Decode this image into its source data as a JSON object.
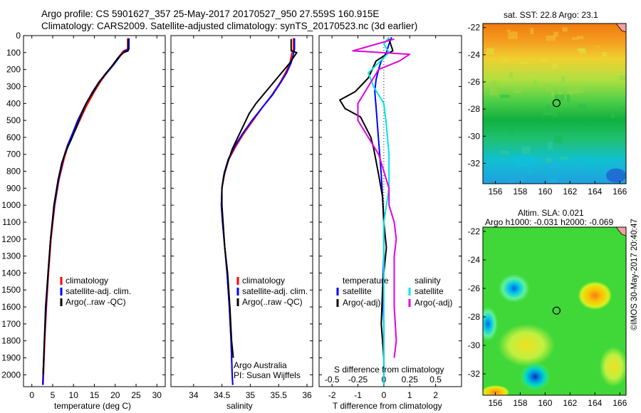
{
  "header": {
    "line1": "Argo profile: CS 5901627_357 25-May-2017 20170527_950 27.559S 160.915E",
    "line2": "Climatology: CARS2009. Satellite-adjusted climatology: synTS_20170523.nc (3d earlier)"
  },
  "credit": "©IMOS 30-May-2017 20:40:47",
  "colors": {
    "climatology": "#ff0000",
    "satellite": "#0000ff",
    "argo": "#000000",
    "satellite_s": "#00e5e5",
    "argo_adj_s": "#e000e0"
  },
  "chart_data": [
    {
      "id": "temperature",
      "type": "line",
      "xlabel": "temperature (deg C)",
      "ylabel": "",
      "xlim": [
        -2,
        32
      ],
      "ylim": [
        2070,
        0
      ],
      "xticks": [
        0,
        5,
        10,
        15,
        20,
        25,
        30
      ],
      "yticks": [
        0,
        100,
        200,
        300,
        400,
        500,
        600,
        700,
        800,
        900,
        1000,
        1100,
        1200,
        1300,
        1400,
        1500,
        1600,
        1700,
        1800,
        1900,
        2000
      ],
      "legend": [
        "climatology",
        "satellite-adj. clim.",
        "Argo(..raw -QC)"
      ],
      "series": [
        {
          "name": "climatology",
          "color": "#ff0000",
          "points": [
            [
              23.0,
              15
            ],
            [
              23.0,
              80
            ],
            [
              22.0,
              90
            ],
            [
              21.0,
              120
            ],
            [
              19.5,
              170
            ],
            [
              18.0,
              220
            ],
            [
              16.5,
              270
            ],
            [
              15.0,
              330
            ],
            [
              13.0,
              420
            ],
            [
              11.5,
              500
            ],
            [
              10.0,
              580
            ],
            [
              8.7,
              650
            ],
            [
              7.8,
              720
            ],
            [
              6.5,
              850
            ],
            [
              5.5,
              1000
            ],
            [
              4.6,
              1200
            ],
            [
              4.0,
              1400
            ],
            [
              3.5,
              1600
            ],
            [
              3.1,
              1800
            ],
            [
              2.8,
              2000
            ],
            [
              2.7,
              2060
            ]
          ]
        },
        {
          "name": "satellite-adj. clim.",
          "color": "#0000ff",
          "points": [
            [
              23.3,
              15
            ],
            [
              23.3,
              80
            ],
            [
              22.3,
              90
            ],
            [
              21.2,
              120
            ],
            [
              19.7,
              170
            ],
            [
              18.0,
              220
            ],
            [
              16.2,
              270
            ],
            [
              14.6,
              330
            ],
            [
              12.6,
              420
            ],
            [
              11.0,
              500
            ],
            [
              9.7,
              580
            ],
            [
              8.5,
              650
            ],
            [
              7.6,
              720
            ],
            [
              6.4,
              850
            ],
            [
              5.4,
              1000
            ],
            [
              4.5,
              1200
            ],
            [
              3.9,
              1400
            ],
            [
              3.4,
              1600
            ],
            [
              3.0,
              1800
            ],
            [
              2.7,
              2000
            ],
            [
              2.6,
              2060
            ]
          ]
        },
        {
          "name": "Argo(..raw -QC)",
          "color": "#000000",
          "points": [
            [
              23.1,
              20
            ],
            [
              23.1,
              90
            ],
            [
              22.0,
              100
            ],
            [
              20.7,
              130
            ],
            [
              19.2,
              180
            ],
            [
              17.5,
              230
            ],
            [
              16.0,
              280
            ],
            [
              14.5,
              340
            ],
            [
              13.0,
              400
            ],
            [
              11.8,
              470
            ],
            [
              10.7,
              540
            ],
            [
              9.5,
              610
            ],
            [
              8.2,
              680
            ],
            [
              7.2,
              750
            ],
            [
              6.3,
              850
            ],
            [
              5.3,
              1000
            ],
            [
              4.5,
              1200
            ],
            [
              3.9,
              1400
            ],
            [
              3.3,
              1600
            ],
            [
              3.0,
              1800
            ],
            [
              2.7,
              2000
            ]
          ]
        }
      ]
    },
    {
      "id": "salinity",
      "type": "line",
      "xlabel": "salinity",
      "ylabel": "",
      "xlim": [
        33.6,
        36.1
      ],
      "ylim": [
        2070,
        0
      ],
      "xticks": [
        34,
        34.5,
        35,
        35.5,
        36
      ],
      "xtick_labels": [
        "34",
        "34.5",
        "35",
        "35.5",
        "36"
      ],
      "legend": [
        "climatology",
        "satellite-adj. clim.",
        "Argo(..raw -QC)"
      ],
      "annotation": [
        "Argo Australia",
        "PI: Susan Wijffels"
      ],
      "series": [
        {
          "name": "climatology",
          "color": "#ff0000",
          "points": [
            [
              35.76,
              15
            ],
            [
              35.76,
              80
            ],
            [
              35.73,
              110
            ],
            [
              35.7,
              160
            ],
            [
              35.62,
              220
            ],
            [
              35.52,
              280
            ],
            [
              35.38,
              350
            ],
            [
              35.22,
              420
            ],
            [
              35.05,
              500
            ],
            [
              34.88,
              580
            ],
            [
              34.75,
              650
            ],
            [
              34.62,
              730
            ],
            [
              34.55,
              810
            ],
            [
              34.5,
              900
            ],
            [
              34.49,
              1000
            ],
            [
              34.51,
              1100
            ],
            [
              34.55,
              1250
            ],
            [
              34.59,
              1400
            ],
            [
              34.63,
              1600
            ],
            [
              34.66,
              1800
            ],
            [
              34.68,
              2000
            ],
            [
              34.69,
              2060
            ]
          ]
        },
        {
          "name": "satellite-adj. clim.",
          "color": "#0000ff",
          "points": [
            [
              35.78,
              15
            ],
            [
              35.78,
              80
            ],
            [
              35.76,
              110
            ],
            [
              35.72,
              160
            ],
            [
              35.64,
              220
            ],
            [
              35.53,
              280
            ],
            [
              35.39,
              350
            ],
            [
              35.22,
              420
            ],
            [
              35.03,
              500
            ],
            [
              34.86,
              580
            ],
            [
              34.73,
              650
            ],
            [
              34.61,
              730
            ],
            [
              34.54,
              810
            ],
            [
              34.5,
              900
            ],
            [
              34.49,
              1000
            ],
            [
              34.51,
              1100
            ],
            [
              34.55,
              1250
            ],
            [
              34.59,
              1400
            ],
            [
              34.63,
              1600
            ],
            [
              34.66,
              1800
            ],
            [
              34.68,
              2000
            ],
            [
              34.69,
              2060
            ]
          ]
        },
        {
          "name": "Argo(..raw -QC)",
          "color": "#000000",
          "points": [
            [
              35.72,
              20
            ],
            [
              35.72,
              90
            ],
            [
              35.82,
              100
            ],
            [
              35.76,
              130
            ],
            [
              35.7,
              160
            ],
            [
              35.55,
              220
            ],
            [
              35.4,
              280
            ],
            [
              35.25,
              340
            ],
            [
              35.1,
              400
            ],
            [
              34.98,
              460
            ],
            [
              34.88,
              530
            ],
            [
              34.78,
              600
            ],
            [
              34.68,
              670
            ],
            [
              34.6,
              750
            ],
            [
              34.53,
              830
            ],
            [
              34.5,
              900
            ],
            [
              34.5,
              1000
            ],
            [
              34.52,
              1100
            ],
            [
              34.55,
              1250
            ],
            [
              34.6,
              1400
            ],
            [
              34.64,
              1600
            ],
            [
              34.67,
              1800
            ],
            [
              34.7,
              1900
            ]
          ]
        }
      ]
    },
    {
      "id": "difference",
      "type": "line",
      "xlabel": "T difference from climatology",
      "xlabel2": "S difference from climatology",
      "ylabel": "",
      "xlim": [
        -2.5,
        3
      ],
      "ylim": [
        2070,
        0
      ],
      "xticks": [
        -2,
        -1,
        0,
        1,
        2
      ],
      "xticks2": [
        -0.5,
        -0.25,
        0,
        0.25,
        0.5
      ],
      "xticks2_labels": [
        "-0.5",
        "-0.25",
        "0",
        "0.25",
        "0.5"
      ],
      "zero_line": 0,
      "legend_groups": [
        {
          "title": "temperature",
          "items": [
            "satellite",
            "Argo(-adj)"
          ]
        },
        {
          "title": "salinity",
          "items": [
            "satellite",
            "Argo(-adj)"
          ]
        }
      ],
      "series": [
        {
          "name": "satellite",
          "group": "temperature",
          "color": "#0000ff",
          "points": [
            [
              0.3,
              10
            ],
            [
              0.2,
              50
            ],
            [
              0.1,
              100
            ],
            [
              -0.1,
              150
            ],
            [
              -0.2,
              200
            ],
            [
              -0.3,
              260
            ],
            [
              -0.35,
              330
            ],
            [
              -0.3,
              420
            ],
            [
              -0.25,
              520
            ],
            [
              -0.2,
              620
            ],
            [
              -0.15,
              720
            ],
            [
              -0.1,
              820
            ],
            [
              -0.05,
              950
            ],
            [
              0,
              1100
            ],
            [
              0,
              1300
            ],
            [
              -0.05,
              1500
            ],
            [
              0,
              1700
            ],
            [
              0,
              1900
            ],
            [
              0,
              2060
            ]
          ]
        },
        {
          "name": "Argo(-adj)",
          "group": "temperature",
          "color": "#000000",
          "points": [
            [
              0.2,
              20
            ],
            [
              0.35,
              90
            ],
            [
              0.1,
              110
            ],
            [
              -0.3,
              150
            ],
            [
              -0.6,
              250
            ],
            [
              -1.1,
              330
            ],
            [
              -1.7,
              380
            ],
            [
              -1.5,
              430
            ],
            [
              -0.9,
              480
            ],
            [
              -0.7,
              540
            ],
            [
              -0.5,
              600
            ],
            [
              -0.4,
              660
            ],
            [
              -0.3,
              740
            ],
            [
              -0.2,
              820
            ],
            [
              -0.05,
              950
            ],
            [
              0,
              1100
            ],
            [
              0.1,
              1250
            ],
            [
              0.0,
              1400
            ],
            [
              -0.05,
              1500
            ],
            [
              -0.1,
              1700
            ],
            [
              0,
              1900
            ]
          ]
        },
        {
          "name": "satellite",
          "group": "salinity",
          "color": "#00e5e5",
          "points": [
            [
              0.05,
              10
            ],
            [
              0.0,
              50
            ],
            [
              0.05,
              100
            ],
            [
              -0.05,
              160
            ],
            [
              -0.15,
              220
            ],
            [
              -0.1,
              300
            ],
            [
              0.0,
              400
            ],
            [
              0.02,
              500
            ],
            [
              0.05,
              700
            ],
            [
              0.05,
              900
            ],
            [
              0.0,
              1100
            ],
            [
              0.0,
              1300
            ],
            [
              0.0,
              1500
            ],
            [
              0.0,
              1700
            ],
            [
              0.0,
              1900
            ],
            [
              0.0,
              2060
            ]
          ]
        },
        {
          "name": "Argo(-adj)",
          "group": "salinity",
          "color": "#e000e0",
          "points": [
            [
              0.1,
              20
            ],
            [
              -0.3,
              90
            ],
            [
              0.25,
              110
            ],
            [
              0.15,
              150
            ],
            [
              -0.05,
              200
            ],
            [
              -0.15,
              300
            ],
            [
              -0.25,
              400
            ],
            [
              -0.25,
              500
            ],
            [
              -0.15,
              600
            ],
            [
              -0.05,
              700
            ],
            [
              0.0,
              800
            ],
            [
              0.05,
              900
            ],
            [
              0.05,
              1000
            ],
            [
              0.1,
              1100
            ],
            [
              0.12,
              1200
            ],
            [
              0.1,
              1300
            ],
            [
              0.1,
              1400
            ],
            [
              0.1,
              1600
            ],
            [
              0.12,
              1800
            ],
            [
              0.1,
              1900
            ]
          ]
        }
      ]
    },
    {
      "id": "sst_map",
      "type": "heatmap",
      "title": "sat. SST: 22.8 Argo: 23.1",
      "xlim": [
        155,
        166.5
      ],
      "ylim": [
        -33.5,
        -21.7
      ],
      "xticks": [
        156,
        158,
        160,
        162,
        164,
        166
      ],
      "yticks": [
        -22,
        -24,
        -26,
        -28,
        -30,
        -32
      ],
      "marker": [
        160.915,
        -27.559
      ]
    },
    {
      "id": "sla_map",
      "type": "heatmap",
      "title": "Altim. SLA: 0.021",
      "subtitle": "Argo h1000: -0.031 h2000: -0.069",
      "xlim": [
        155,
        166.5
      ],
      "ylim": [
        -33.5,
        -21.7
      ],
      "xticks": [
        156,
        158,
        160,
        162,
        164,
        166
      ],
      "yticks": [
        -22,
        -24,
        -26,
        -28,
        -30,
        -32
      ],
      "marker": [
        160.915,
        -27.559
      ]
    }
  ]
}
